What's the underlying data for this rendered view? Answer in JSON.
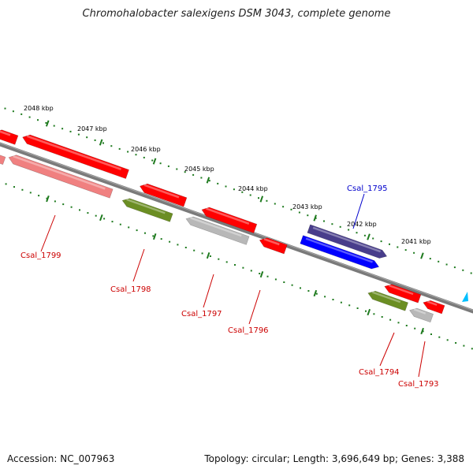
{
  "title": "Chromohalobacter salexigens DSM 3043, complete genome",
  "footer": {
    "accession": "Accession: NC_007963",
    "summary": "Topology: circular; Length: 3,696,649 bp; Genes: 3,388"
  },
  "colors": {
    "backbone": "#7a7a7a",
    "ruler": "#1e7a1e",
    "red": "#ff0000",
    "pink": "#f08080",
    "olive": "#6b8e23",
    "gray": "#b8b8b8",
    "navy": "#483d8b",
    "blue": "#0000ff",
    "label_red": "#cc0000",
    "label_blue": "#0000cc",
    "marker": "#00bfff"
  },
  "ruler_labels": [
    "2048 kbp",
    "2047 kbp",
    "2046 kbp",
    "2045 kbp",
    "2044 kbp",
    "2043 kbp",
    "2042 kbp",
    "2041 kbp"
  ],
  "genes": [
    {
      "id": "gene-unlabeled-1",
      "color": "red",
      "strand": "minus"
    },
    {
      "id": "gene-unlabeled-2",
      "color": "pink",
      "strand": "minus"
    },
    {
      "id": "gene-csal-1799-a",
      "color": "red",
      "strand": "minus"
    },
    {
      "id": "gene-csal-1799-b",
      "color": "pink",
      "strand": "minus"
    },
    {
      "id": "gene-csal-1798-a",
      "color": "red",
      "strand": "minus"
    },
    {
      "id": "gene-csal-1798-b",
      "color": "olive",
      "strand": "minus"
    },
    {
      "id": "gene-csal-1797-a",
      "color": "red",
      "strand": "minus"
    },
    {
      "id": "gene-csal-1797-b",
      "color": "gray",
      "strand": "minus"
    },
    {
      "id": "gene-csal-1796",
      "color": "red",
      "strand": "minus"
    },
    {
      "id": "gene-csal-1795-a",
      "color": "navy",
      "strand": "plus"
    },
    {
      "id": "gene-csal-1795-b",
      "color": "blue",
      "strand": "plus"
    },
    {
      "id": "gene-csal-1794-a",
      "color": "red",
      "strand": "minus"
    },
    {
      "id": "gene-csal-1794-b",
      "color": "olive",
      "strand": "minus"
    },
    {
      "id": "gene-csal-1793-a",
      "color": "red",
      "strand": "minus"
    },
    {
      "id": "gene-csal-1793-b",
      "color": "gray",
      "strand": "minus"
    }
  ],
  "gene_labels": [
    {
      "text": "Csal_1799",
      "color": "label_red"
    },
    {
      "text": "Csal_1798",
      "color": "label_red"
    },
    {
      "text": "Csal_1797",
      "color": "label_red"
    },
    {
      "text": "Csal_1796",
      "color": "label_red"
    },
    {
      "text": "Csal_1795",
      "color": "label_blue"
    },
    {
      "text": "Csal_1794",
      "color": "label_red"
    },
    {
      "text": "Csal_1793",
      "color": "label_red"
    }
  ]
}
